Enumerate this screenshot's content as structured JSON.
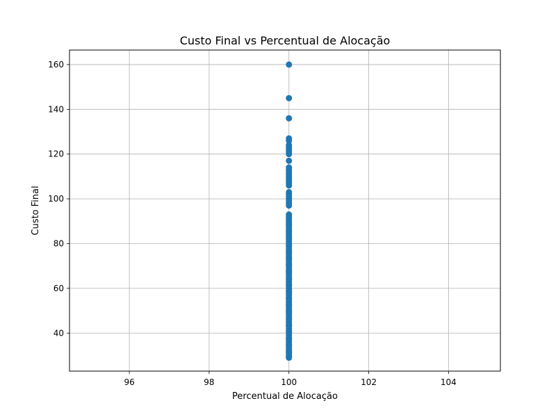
{
  "chart_data": {
    "type": "scatter",
    "title": "Custo Final vs Percentual de Alocação",
    "xlabel": "Percentual de Alocação",
    "ylabel": "Custo Final",
    "xlim": [
      94.5,
      105.3
    ],
    "ylim": [
      23,
      166.5
    ],
    "xticks": [
      96,
      98,
      100,
      102,
      104
    ],
    "yticks": [
      40,
      60,
      80,
      100,
      120,
      140,
      160
    ],
    "grid": true,
    "legend": "none",
    "series": [
      {
        "color": "#1f77b4",
        "x": [
          100,
          100,
          100,
          100,
          100,
          100,
          100,
          100,
          100,
          100,
          100,
          100,
          100,
          100,
          100,
          100,
          100,
          100,
          100,
          100,
          100,
          100,
          100,
          100,
          100,
          100,
          100,
          100,
          100,
          100,
          100,
          100,
          100,
          100,
          100,
          100,
          100,
          100,
          100,
          100,
          100,
          100,
          100,
          100,
          100,
          100,
          100,
          100,
          100,
          100,
          100,
          100,
          100,
          100,
          100,
          100,
          100,
          100,
          100,
          100,
          100,
          100,
          100,
          100,
          100,
          100,
          100,
          100,
          100,
          100,
          100,
          100,
          100,
          100,
          100,
          100,
          100,
          100,
          100,
          100,
          100,
          100,
          100,
          100,
          100,
          100,
          100,
          100,
          100,
          100,
          100,
          100,
          100,
          100,
          100,
          100,
          100,
          100,
          100,
          100,
          100,
          100,
          100,
          100,
          100,
          100,
          100,
          100,
          100,
          100,
          100,
          100,
          100
        ],
        "y": [
          160,
          145,
          136,
          127,
          126,
          124,
          123,
          122,
          121,
          120,
          117,
          114,
          113,
          112,
          111,
          110,
          109,
          108,
          107,
          106,
          103,
          102,
          101,
          100,
          99,
          98,
          97,
          93,
          92,
          91,
          90,
          89,
          88,
          87,
          86,
          85,
          84,
          83,
          82,
          81,
          80,
          79,
          78,
          77,
          76,
          75,
          74,
          73,
          72,
          71,
          70,
          69,
          68,
          67,
          66,
          65,
          64,
          63,
          62,
          61,
          60,
          59,
          58,
          57,
          56,
          55,
          54,
          53,
          52,
          51,
          50,
          49,
          48,
          47,
          46,
          45,
          44,
          43,
          42,
          41,
          40,
          39,
          38,
          37,
          36,
          35,
          34,
          33,
          32,
          31,
          30,
          29,
          88.5,
          85.5,
          82.5,
          79.5,
          76.5,
          73.5,
          70.5,
          67.5,
          64.5,
          61.5,
          58.5,
          55.5,
          52.5,
          49.5,
          46.5,
          43.5,
          40.5,
          37.5,
          34.5,
          31.5,
          29.5
        ]
      }
    ]
  },
  "colors": {
    "point": "#1f77b4",
    "grid": "#b0b0b0",
    "axis": "#000000"
  }
}
